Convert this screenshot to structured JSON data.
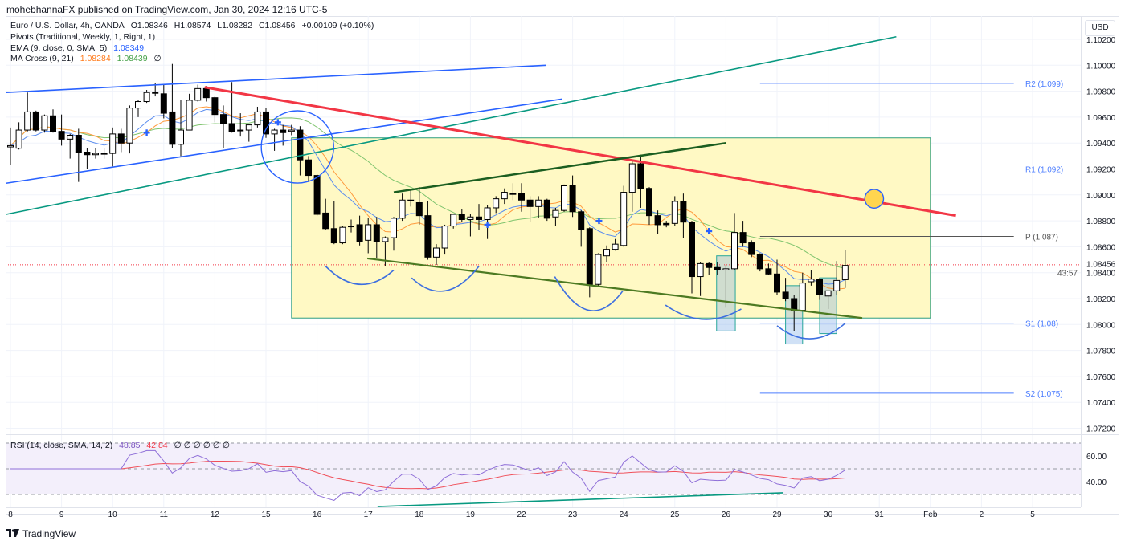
{
  "header": {
    "publisher_line": "mohebhannaFX published on TradingView.com, Jan 30, 2024 12:16 UTC-5"
  },
  "legend": {
    "symbol": "Euro / U.S. Dollar, 4h, OANDA",
    "open": "O1.08346",
    "high": "H1.08574",
    "low": "L1.08282",
    "close": "C1.08456",
    "change": "+0.00109 (+0.10%)",
    "pivots": "Pivots (Traditional, Weekly, 1, Right, 1)",
    "ema": "EMA (9, close, 0, SMA, 5)",
    "ema_value": "1.08349",
    "ma_cross": "MA Cross (9, 21)",
    "ma_fast_value": "1.08284",
    "ma_slow_value": "1.08439",
    "ma_extra": "∅",
    "rsi": "RSI (14, close, SMA, 14, 2)",
    "rsi_value": "48.85",
    "rsi_ma_value": "42.84",
    "rsi_extra": "∅ ∅ ∅ ∅ ∅ ∅"
  },
  "price_axis": {
    "currency": "USD",
    "countdown": "43:57"
  },
  "footer": {
    "brand": "TradingView",
    "logo": "TV"
  },
  "colors": {
    "up": "#ffffff",
    "down": "#000000",
    "ema": "#5b8def",
    "ma_fast": "#ff9a3c",
    "ma_slow": "#7fc46e",
    "rsi": "#8f6fd8",
    "rsi_ma": "#f0505a",
    "pivot": "#4c7dff",
    "pivot_p": "#555555"
  },
  "chart_data": {
    "type": "candlestick",
    "title": "Euro / U.S. Dollar, 4h, OANDA",
    "ylabel": "USD",
    "ylim": [
      1.0712,
      1.1035
    ],
    "y_ticks": [
      "1.10200",
      "1.10000",
      "1.09800",
      "1.09600",
      "1.09400",
      "1.09200",
      "1.09000",
      "1.08800",
      "1.08600",
      "1.08400",
      "1.08200",
      "1.08000",
      "1.07800",
      "1.07600",
      "1.07400",
      "1.07200"
    ],
    "last_price": "1.08456",
    "x_ticks": [
      {
        "label": "8",
        "bar": 0
      },
      {
        "label": "9",
        "bar": 6
      },
      {
        "label": "10",
        "bar": 12
      },
      {
        "label": "11",
        "bar": 18
      },
      {
        "label": "12",
        "bar": 24
      },
      {
        "label": "15",
        "bar": 30
      },
      {
        "label": "16",
        "bar": 36
      },
      {
        "label": "17",
        "bar": 42
      },
      {
        "label": "18",
        "bar": 48
      },
      {
        "label": "19",
        "bar": 54
      },
      {
        "label": "22",
        "bar": 60
      },
      {
        "label": "23",
        "bar": 66
      },
      {
        "label": "24",
        "bar": 72
      },
      {
        "label": "25",
        "bar": 78
      },
      {
        "label": "26",
        "bar": 84
      },
      {
        "label": "29",
        "bar": 90
      },
      {
        "label": "30",
        "bar": 96
      },
      {
        "label": "31",
        "bar": 102
      },
      {
        "label": "Feb",
        "bar": 108
      },
      {
        "label": "2",
        "bar": 114
      },
      {
        "label": "5",
        "bar": 120
      }
    ],
    "ohlc": [
      [
        1.0937,
        1.0952,
        1.0923,
        1.0938
      ],
      [
        1.0936,
        1.0956,
        1.0935,
        1.095
      ],
      [
        1.095,
        1.0979,
        1.0949,
        1.0964
      ],
      [
        1.0964,
        1.0965,
        1.0949,
        1.095
      ],
      [
        1.095,
        1.0962,
        1.0948,
        1.0961
      ],
      [
        1.0961,
        1.0966,
        1.0948,
        1.0949
      ],
      [
        1.0949,
        1.0962,
        1.0938,
        1.0943
      ],
      [
        1.0943,
        1.0947,
        1.0928,
        1.0946
      ],
      [
        1.0946,
        1.0951,
        1.091,
        1.0933
      ],
      [
        1.0933,
        1.0936,
        1.092,
        1.0931
      ],
      [
        1.0931,
        1.0936,
        1.0928,
        1.0932
      ],
      [
        1.0932,
        1.0936,
        1.0928,
        1.0932
      ],
      [
        1.0932,
        1.0952,
        1.0922,
        1.0947
      ],
      [
        1.0947,
        1.0951,
        1.0933,
        1.094
      ],
      [
        1.094,
        1.0969,
        1.0932,
        1.0967
      ],
      [
        1.0967,
        1.0973,
        1.096,
        1.0972
      ],
      [
        1.0972,
        1.0981,
        1.0971,
        1.0979
      ],
      [
        1.0979,
        1.0986,
        1.0976,
        1.0979
      ],
      [
        1.0978,
        1.0985,
        1.0959,
        1.0963
      ],
      [
        1.0964,
        1.1001,
        1.0936,
        1.0939
      ],
      [
        1.0939,
        1.0973,
        1.093,
        1.095
      ],
      [
        1.095,
        1.0978,
        1.095,
        1.0973
      ],
      [
        1.0973,
        1.0985,
        1.0972,
        1.0982
      ],
      [
        1.0982,
        1.0984,
        1.0972,
        1.0975
      ],
      [
        1.0975,
        1.0976,
        1.0956,
        1.0962
      ],
      [
        1.0962,
        1.0969,
        1.0936,
        1.0955
      ],
      [
        1.0955,
        1.0987,
        1.0948,
        1.0949
      ],
      [
        1.095,
        1.0963,
        1.0945,
        1.095
      ],
      [
        1.095,
        1.0954,
        1.0941,
        1.0954
      ],
      [
        1.0954,
        1.0968,
        1.0952,
        1.0964
      ],
      [
        1.0964,
        1.0967,
        1.0944,
        1.0947
      ],
      [
        1.0947,
        1.0951,
        1.0934,
        1.095
      ],
      [
        1.095,
        1.0954,
        1.0938,
        1.0948
      ],
      [
        1.0949,
        1.0954,
        1.0946,
        1.095
      ],
      [
        1.095,
        1.0953,
        1.0915,
        1.0927
      ],
      [
        1.0927,
        1.093,
        1.091,
        1.0915
      ],
      [
        1.0915,
        1.0916,
        1.0884,
        1.0885
      ],
      [
        1.0886,
        1.0897,
        1.0873,
        1.0874
      ],
      [
        1.0874,
        1.0895,
        1.0862,
        1.0863
      ],
      [
        1.0863,
        1.0876,
        1.0862,
        1.0875
      ],
      [
        1.0876,
        1.0881,
        1.0871,
        1.0876
      ],
      [
        1.0877,
        1.0884,
        1.0861,
        1.0864
      ],
      [
        1.0865,
        1.0882,
        1.0855,
        1.0877
      ],
      [
        1.0877,
        1.0883,
        1.0851,
        1.0864
      ],
      [
        1.0864,
        1.0868,
        1.0845,
        1.0867
      ],
      [
        1.0867,
        1.0883,
        1.0857,
        1.0882
      ],
      [
        1.0882,
        1.0901,
        1.088,
        1.0896
      ],
      [
        1.0896,
        1.0904,
        1.0891,
        1.0896
      ],
      [
        1.0894,
        1.0906,
        1.0877,
        1.0884
      ],
      [
        1.0884,
        1.0895,
        1.085,
        1.0852
      ],
      [
        1.0852,
        1.0862,
        1.0846,
        1.0859
      ],
      [
        1.0859,
        1.0877,
        1.0854,
        1.0876
      ],
      [
        1.0876,
        1.0885,
        1.0874,
        1.0885
      ],
      [
        1.0885,
        1.0889,
        1.0879,
        1.0881
      ],
      [
        1.0881,
        1.0885,
        1.0868,
        1.0883
      ],
      [
        1.0883,
        1.0893,
        1.0873,
        1.0881
      ],
      [
        1.0881,
        1.0892,
        1.0866,
        1.089
      ],
      [
        1.089,
        1.0899,
        1.0886,
        1.0897
      ],
      [
        1.0897,
        1.0905,
        1.0893,
        1.0902
      ],
      [
        1.0901,
        1.0909,
        1.0896,
        1.0901
      ],
      [
        1.0901,
        1.0909,
        1.0887,
        1.0896
      ],
      [
        1.0896,
        1.0899,
        1.0879,
        1.0891
      ],
      [
        1.0891,
        1.0899,
        1.0882,
        1.0896
      ],
      [
        1.0896,
        1.0897,
        1.088,
        1.0882
      ],
      [
        1.0883,
        1.089,
        1.0876,
        1.0888
      ],
      [
        1.0888,
        1.0908,
        1.0887,
        1.0907
      ],
      [
        1.0907,
        1.0915,
        1.0883,
        1.0887
      ],
      [
        1.0887,
        1.0888,
        1.086,
        1.0873
      ],
      [
        1.0874,
        1.0875,
        1.0821,
        1.0831
      ],
      [
        1.0831,
        1.0855,
        1.083,
        1.0854
      ],
      [
        1.0853,
        1.0861,
        1.0848,
        1.0858
      ],
      [
        1.0858,
        1.0866,
        1.0857,
        1.0862
      ],
      [
        1.0861,
        1.0907,
        1.086,
        1.0902
      ],
      [
        1.0902,
        1.0927,
        1.0887,
        1.0924
      ],
      [
        1.0924,
        1.0931,
        1.089,
        1.0905
      ],
      [
        1.0905,
        1.0906,
        1.0877,
        1.0884
      ],
      [
        1.0884,
        1.0888,
        1.087,
        1.0877
      ],
      [
        1.0878,
        1.088,
        1.0875,
        1.0877
      ],
      [
        1.0878,
        1.0899,
        1.0876,
        1.0895
      ],
      [
        1.0895,
        1.0901,
        1.0867,
        1.0879
      ],
      [
        1.0879,
        1.088,
        1.0824,
        1.0837
      ],
      [
        1.0837,
        1.0848,
        1.0822,
        1.0847
      ],
      [
        1.0847,
        1.0848,
        1.0838,
        1.0844
      ],
      [
        1.0844,
        1.0848,
        1.0838,
        1.0842
      ],
      [
        1.0842,
        1.0846,
        1.0813,
        1.0843
      ],
      [
        1.0843,
        1.0886,
        1.0842,
        1.0871
      ],
      [
        1.0871,
        1.088,
        1.086,
        1.0863
      ],
      [
        1.0863,
        1.0865,
        1.0852,
        1.0854
      ],
      [
        1.0854,
        1.0855,
        1.0841,
        1.0843
      ],
      [
        1.0843,
        1.0847,
        1.0838,
        1.0839
      ],
      [
        1.0839,
        1.085,
        1.0823,
        1.0825
      ],
      [
        1.0825,
        1.0836,
        1.0818,
        1.082
      ],
      [
        1.082,
        1.0823,
        1.0795,
        1.0811
      ],
      [
        1.0811,
        1.084,
        1.081,
        1.0832
      ],
      [
        1.0833,
        1.0842,
        1.083,
        1.0835
      ],
      [
        1.0835,
        1.0836,
        1.0819,
        1.0823
      ],
      [
        1.0822,
        1.0826,
        1.0812,
        1.0826
      ],
      [
        1.0826,
        1.0849,
        1.0823,
        1.0834
      ],
      [
        1.08346,
        1.08574,
        1.08282,
        1.08456
      ]
    ],
    "pivots": [
      {
        "label": "R2 (1.099)",
        "price": 1.0986,
        "color": "#4c7dff"
      },
      {
        "label": "R1 (1.092)",
        "price": 1.092,
        "color": "#4c7dff"
      },
      {
        "label": "P (1.087)",
        "price": 1.0868,
        "color": "#555555"
      },
      {
        "label": "S1 (1.08)",
        "price": 1.0801,
        "color": "#4c7dff"
      },
      {
        "label": "S2 (1.075)",
        "price": 1.0747,
        "color": "#4c7dff"
      }
    ],
    "pivot_range_bars": [
      88,
      117.8
    ],
    "drawings": {
      "lines": [
        {
          "name": "channel-upper-blue",
          "color": "#2962ff",
          "width": 1.6,
          "from": [
            -0.5,
            1.0979
          ],
          "to": [
            62.9,
            1.1
          ]
        },
        {
          "name": "channel-lower-blue",
          "color": "#2962ff",
          "width": 1.6,
          "from": [
            -0.5,
            1.0909
          ],
          "to": [
            64.8,
            1.0974
          ]
        },
        {
          "name": "trendline-teal",
          "color": "#089981",
          "width": 1.6,
          "from": [
            -0.5,
            1.0885
          ],
          "to": [
            104,
            1.1022
          ]
        },
        {
          "name": "resistance-red",
          "color": "#f23645",
          "width": 3,
          "from": [
            22.8,
            1.0983
          ],
          "to": [
            111,
            1.0884
          ]
        },
        {
          "name": "wedge-upper-darkgreen",
          "color": "#1b5e20",
          "width": 2.5,
          "from": [
            45,
            1.0902
          ],
          "to": [
            84,
            1.094
          ]
        },
        {
          "name": "wedge-lower-olive",
          "color": "#4c7a22",
          "width": 2.2,
          "from": [
            41.9,
            1.0851
          ],
          "to": [
            100,
            1.0805
          ]
        }
      ],
      "range_box": {
        "bars": [
          33,
          108
        ],
        "prices": [
          1.0944,
          1.0805
        ],
        "fill": "#fff9c4",
        "border": "#2e9e7e"
      },
      "highlight_boxes": [
        {
          "bars": [
            82.9,
            85.1
          ],
          "prices": [
            1.0853,
            1.0795
          ]
        },
        {
          "bars": [
            91.0,
            93.0
          ],
          "prices": [
            1.083,
            1.0785
          ]
        },
        {
          "bars": [
            95.0,
            97.0
          ],
          "prices": [
            1.0836,
            1.0793
          ]
        }
      ],
      "arcs": [
        {
          "from": [
            37.0,
            1.0845
          ],
          "to": [
            45.0,
            1.0842
          ],
          "bottom": 1.0831
        },
        {
          "from": [
            47.1,
            1.0836
          ],
          "to": [
            55.0,
            1.0845
          ],
          "bottom": 1.0826
        },
        {
          "from": [
            63.9,
            1.0837
          ],
          "to": [
            71.9,
            1.0826
          ],
          "bottom": 1.0811
        },
        {
          "from": [
            76.9,
            1.0815
          ],
          "to": [
            85.8,
            1.0812
          ],
          "bottom": 1.0804
        },
        {
          "from": [
            90.0,
            1.0799
          ],
          "to": [
            98.0,
            1.0801
          ],
          "bottom": 1.0789
        }
      ],
      "circles": [
        {
          "name": "breakout-circle",
          "center": [
            33.7,
            1.0937
          ],
          "radius_bars": 4.25,
          "fill": "none",
          "stroke": "#2962ff"
        },
        {
          "name": "target-circle",
          "center": [
            101.4,
            1.0897
          ],
          "radius_bars": 1.1,
          "fill": "#ffd54f",
          "stroke": "#2962ff"
        }
      ],
      "cross_markers": [
        [
          16.0,
          1.0948
        ],
        [
          31.4,
          1.0956
        ],
        [
          56.0,
          1.0877
        ],
        [
          69.1,
          1.088
        ],
        [
          82.0,
          1.0872
        ]
      ],
      "rsi_divergence": {
        "from": [
          43.1,
          20.6
        ],
        "to": [
          90.7,
          31.3
        ],
        "color": "#089981"
      }
    },
    "rsi": {
      "period": 14,
      "ma_period": 14,
      "levels": [
        70,
        50,
        30
      ],
      "y_ticks": [
        "60.00",
        "40.00"
      ],
      "last": 48.85,
      "last_ma": 42.84
    }
  }
}
